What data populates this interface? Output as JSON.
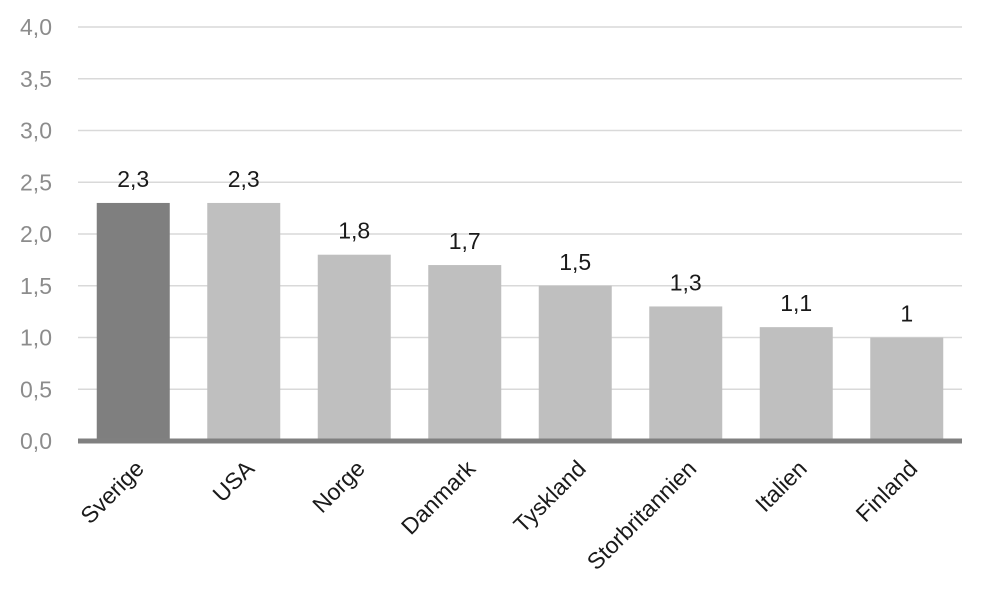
{
  "chart_data": {
    "type": "bar",
    "title": "",
    "xlabel": "",
    "ylabel": "",
    "ylim": [
      0,
      4
    ],
    "y_ticks": [
      0,
      0.5,
      1,
      1.5,
      2,
      2.5,
      3,
      3.5,
      4
    ],
    "y_tick_labels": [
      "0,0",
      "0,5",
      "1,0",
      "1,5",
      "2,0",
      "2,5",
      "3,0",
      "3,5",
      "4,0"
    ],
    "categories": [
      "Sverige",
      "USA",
      "Norge",
      "Danmark",
      "Tyskland",
      "Storbritannien",
      "Italien",
      "Finland"
    ],
    "values": [
      2.3,
      2.3,
      1.8,
      1.7,
      1.5,
      1.3,
      1.1,
      1.0
    ],
    "data_labels": [
      "2,3",
      "2,3",
      "1,8",
      "1,7",
      "1,5",
      "1,3",
      "1,1",
      "1"
    ],
    "grid": true,
    "colors": {
      "highlight": "#7f7f7f",
      "bar": "#bfbfbf",
      "baseline": "#808080",
      "grid": "#d9d9d9"
    },
    "highlight_index": 0
  }
}
